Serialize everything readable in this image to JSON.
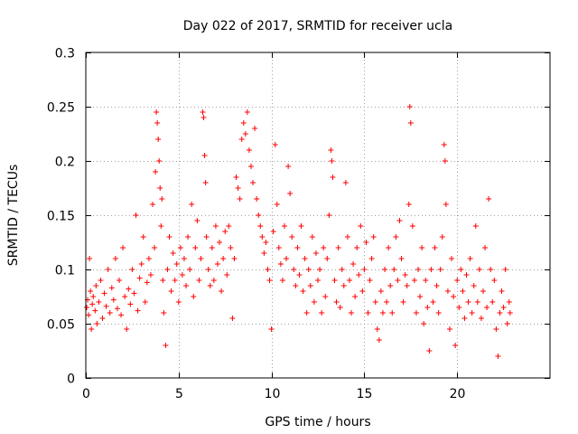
{
  "chart_data": {
    "type": "scatter",
    "title": "Day 022 of 2017, SRMTID for receiver ucla",
    "xlabel": "GPS time / hours",
    "ylabel": "SRMTID / TECUs",
    "xlim": [
      0,
      25
    ],
    "ylim": [
      0,
      0.3
    ],
    "xticks": [
      0,
      5,
      10,
      15,
      20
    ],
    "xtick_labels": [
      "0",
      "5",
      "10",
      "15",
      "20"
    ],
    "yticks": [
      0,
      0.05,
      0.1,
      0.15,
      0.2,
      0.25,
      0.3
    ],
    "ytick_labels": [
      "0",
      "0.05",
      "0.1",
      "0.15",
      "0.2",
      "0.25",
      "0.3"
    ],
    "grid": true,
    "marker": "+",
    "color": "#ff0000",
    "series": [
      {
        "name": "SRMTID",
        "points": [
          [
            0.05,
            0.065
          ],
          [
            0.1,
            0.072
          ],
          [
            0.15,
            0.058
          ],
          [
            0.2,
            0.11
          ],
          [
            0.25,
            0.08
          ],
          [
            0.3,
            0.045
          ],
          [
            0.35,
            0.068
          ],
          [
            0.4,
            0.075
          ],
          [
            0.5,
            0.062
          ],
          [
            0.55,
            0.085
          ],
          [
            0.6,
            0.05
          ],
          [
            0.7,
            0.07
          ],
          [
            0.8,
            0.09
          ],
          [
            0.9,
            0.055
          ],
          [
            1.0,
            0.078
          ],
          [
            1.1,
            0.066
          ],
          [
            1.2,
            0.1
          ],
          [
            1.3,
            0.06
          ],
          [
            1.4,
            0.083
          ],
          [
            1.5,
            0.072
          ],
          [
            1.6,
            0.11
          ],
          [
            1.7,
            0.064
          ],
          [
            1.8,
            0.09
          ],
          [
            1.9,
            0.058
          ],
          [
            2.0,
            0.12
          ],
          [
            2.1,
            0.075
          ],
          [
            2.2,
            0.045
          ],
          [
            2.3,
            0.082
          ],
          [
            2.4,
            0.068
          ],
          [
            2.5,
            0.1
          ],
          [
            2.6,
            0.078
          ],
          [
            2.7,
            0.15
          ],
          [
            2.8,
            0.062
          ],
          [
            2.9,
            0.092
          ],
          [
            3.0,
            0.105
          ],
          [
            3.1,
            0.13
          ],
          [
            3.2,
            0.07
          ],
          [
            3.3,
            0.088
          ],
          [
            3.4,
            0.11
          ],
          [
            3.5,
            0.095
          ],
          [
            3.6,
            0.16
          ],
          [
            3.7,
            0.12
          ],
          [
            3.75,
            0.19
          ],
          [
            3.8,
            0.245
          ],
          [
            3.85,
            0.235
          ],
          [
            3.9,
            0.22
          ],
          [
            3.95,
            0.2
          ],
          [
            4.0,
            0.175
          ],
          [
            4.05,
            0.14
          ],
          [
            4.1,
            0.165
          ],
          [
            4.15,
            0.09
          ],
          [
            4.2,
            0.06
          ],
          [
            4.3,
            0.03
          ],
          [
            4.4,
            0.1
          ],
          [
            4.5,
            0.13
          ],
          [
            4.6,
            0.08
          ],
          [
            4.7,
            0.115
          ],
          [
            4.8,
            0.09
          ],
          [
            4.9,
            0.105
          ],
          [
            5.0,
            0.07
          ],
          [
            5.1,
            0.12
          ],
          [
            5.2,
            0.095
          ],
          [
            5.3,
            0.11
          ],
          [
            5.4,
            0.085
          ],
          [
            5.5,
            0.13
          ],
          [
            5.6,
            0.1
          ],
          [
            5.7,
            0.16
          ],
          [
            5.8,
            0.075
          ],
          [
            5.9,
            0.12
          ],
          [
            6.0,
            0.145
          ],
          [
            6.1,
            0.09
          ],
          [
            6.2,
            0.11
          ],
          [
            6.3,
            0.245
          ],
          [
            6.35,
            0.24
          ],
          [
            6.4,
            0.205
          ],
          [
            6.45,
            0.18
          ],
          [
            6.5,
            0.13
          ],
          [
            6.6,
            0.1
          ],
          [
            6.7,
            0.085
          ],
          [
            6.8,
            0.12
          ],
          [
            6.9,
            0.09
          ],
          [
            7.0,
            0.14
          ],
          [
            7.1,
            0.105
          ],
          [
            7.2,
            0.125
          ],
          [
            7.3,
            0.08
          ],
          [
            7.4,
            0.11
          ],
          [
            7.5,
            0.135
          ],
          [
            7.6,
            0.095
          ],
          [
            7.7,
            0.14
          ],
          [
            7.8,
            0.12
          ],
          [
            7.9,
            0.055
          ],
          [
            8.0,
            0.11
          ],
          [
            8.1,
            0.185
          ],
          [
            8.2,
            0.175
          ],
          [
            8.3,
            0.165
          ],
          [
            8.4,
            0.22
          ],
          [
            8.5,
            0.235
          ],
          [
            8.6,
            0.225
          ],
          [
            8.7,
            0.245
          ],
          [
            8.8,
            0.21
          ],
          [
            8.9,
            0.195
          ],
          [
            9.0,
            0.18
          ],
          [
            9.1,
            0.23
          ],
          [
            9.2,
            0.165
          ],
          [
            9.3,
            0.15
          ],
          [
            9.4,
            0.14
          ],
          [
            9.5,
            0.13
          ],
          [
            9.6,
            0.115
          ],
          [
            9.7,
            0.125
          ],
          [
            9.8,
            0.1
          ],
          [
            9.9,
            0.09
          ],
          [
            10.0,
            0.045
          ],
          [
            10.1,
            0.135
          ],
          [
            10.2,
            0.215
          ],
          [
            10.3,
            0.16
          ],
          [
            10.4,
            0.12
          ],
          [
            10.5,
            0.105
          ],
          [
            10.6,
            0.09
          ],
          [
            10.7,
            0.14
          ],
          [
            10.8,
            0.11
          ],
          [
            10.9,
            0.195
          ],
          [
            11.0,
            0.17
          ],
          [
            11.1,
            0.13
          ],
          [
            11.2,
            0.1
          ],
          [
            11.3,
            0.085
          ],
          [
            11.4,
            0.12
          ],
          [
            11.5,
            0.095
          ],
          [
            11.6,
            0.14
          ],
          [
            11.7,
            0.08
          ],
          [
            11.8,
            0.11
          ],
          [
            11.9,
            0.06
          ],
          [
            12.0,
            0.1
          ],
          [
            12.1,
            0.085
          ],
          [
            12.2,
            0.13
          ],
          [
            12.3,
            0.07
          ],
          [
            12.4,
            0.115
          ],
          [
            12.5,
            0.09
          ],
          [
            12.6,
            0.1
          ],
          [
            12.7,
            0.06
          ],
          [
            12.8,
            0.12
          ],
          [
            12.9,
            0.075
          ],
          [
            13.0,
            0.11
          ],
          [
            13.1,
            0.15
          ],
          [
            13.2,
            0.21
          ],
          [
            13.25,
            0.2
          ],
          [
            13.3,
            0.185
          ],
          [
            13.4,
            0.09
          ],
          [
            13.5,
            0.07
          ],
          [
            13.6,
            0.12
          ],
          [
            13.7,
            0.065
          ],
          [
            13.8,
            0.1
          ],
          [
            13.9,
            0.085
          ],
          [
            14.0,
            0.18
          ],
          [
            14.1,
            0.13
          ],
          [
            14.2,
            0.09
          ],
          [
            14.3,
            0.06
          ],
          [
            14.4,
            0.105
          ],
          [
            14.5,
            0.075
          ],
          [
            14.6,
            0.12
          ],
          [
            14.7,
            0.095
          ],
          [
            14.8,
            0.14
          ],
          [
            14.9,
            0.08
          ],
          [
            15.0,
            0.1
          ],
          [
            15.1,
            0.125
          ],
          [
            15.2,
            0.06
          ],
          [
            15.3,
            0.09
          ],
          [
            15.4,
            0.11
          ],
          [
            15.5,
            0.13
          ],
          [
            15.6,
            0.07
          ],
          [
            15.7,
            0.045
          ],
          [
            15.8,
            0.035
          ],
          [
            15.9,
            0.08
          ],
          [
            16.0,
            0.06
          ],
          [
            16.1,
            0.1
          ],
          [
            16.2,
            0.07
          ],
          [
            16.3,
            0.12
          ],
          [
            16.4,
            0.085
          ],
          [
            16.5,
            0.06
          ],
          [
            16.6,
            0.1
          ],
          [
            16.7,
            0.13
          ],
          [
            16.8,
            0.09
          ],
          [
            16.9,
            0.145
          ],
          [
            17.0,
            0.11
          ],
          [
            17.1,
            0.07
          ],
          [
            17.2,
            0.095
          ],
          [
            17.3,
            0.085
          ],
          [
            17.4,
            0.16
          ],
          [
            17.45,
            0.25
          ],
          [
            17.5,
            0.235
          ],
          [
            17.6,
            0.14
          ],
          [
            17.7,
            0.09
          ],
          [
            17.8,
            0.06
          ],
          [
            17.9,
            0.1
          ],
          [
            18.0,
            0.075
          ],
          [
            18.1,
            0.12
          ],
          [
            18.2,
            0.05
          ],
          [
            18.3,
            0.09
          ],
          [
            18.4,
            0.065
          ],
          [
            18.5,
            0.025
          ],
          [
            18.6,
            0.1
          ],
          [
            18.7,
            0.07
          ],
          [
            18.8,
            0.12
          ],
          [
            18.9,
            0.085
          ],
          [
            19.0,
            0.06
          ],
          [
            19.1,
            0.1
          ],
          [
            19.2,
            0.13
          ],
          [
            19.3,
            0.215
          ],
          [
            19.35,
            0.2
          ],
          [
            19.4,
            0.16
          ],
          [
            19.5,
            0.08
          ],
          [
            19.6,
            0.045
          ],
          [
            19.7,
            0.11
          ],
          [
            19.8,
            0.075
          ],
          [
            19.9,
            0.03
          ],
          [
            20.0,
            0.09
          ],
          [
            20.1,
            0.065
          ],
          [
            20.2,
            0.1
          ],
          [
            20.3,
            0.08
          ],
          [
            20.4,
            0.055
          ],
          [
            20.5,
            0.095
          ],
          [
            20.6,
            0.07
          ],
          [
            20.7,
            0.11
          ],
          [
            20.8,
            0.06
          ],
          [
            20.9,
            0.085
          ],
          [
            21.0,
            0.14
          ],
          [
            21.1,
            0.07
          ],
          [
            21.2,
            0.1
          ],
          [
            21.3,
            0.055
          ],
          [
            21.4,
            0.08
          ],
          [
            21.5,
            0.12
          ],
          [
            21.6,
            0.065
          ],
          [
            21.7,
            0.165
          ],
          [
            21.8,
            0.1
          ],
          [
            21.9,
            0.07
          ],
          [
            22.0,
            0.09
          ],
          [
            22.1,
            0.045
          ],
          [
            22.2,
            0.02
          ],
          [
            22.3,
            0.06
          ],
          [
            22.4,
            0.08
          ],
          [
            22.5,
            0.065
          ],
          [
            22.6,
            0.1
          ],
          [
            22.7,
            0.05
          ],
          [
            22.8,
            0.07
          ],
          [
            22.85,
            0.06
          ]
        ]
      }
    ]
  }
}
